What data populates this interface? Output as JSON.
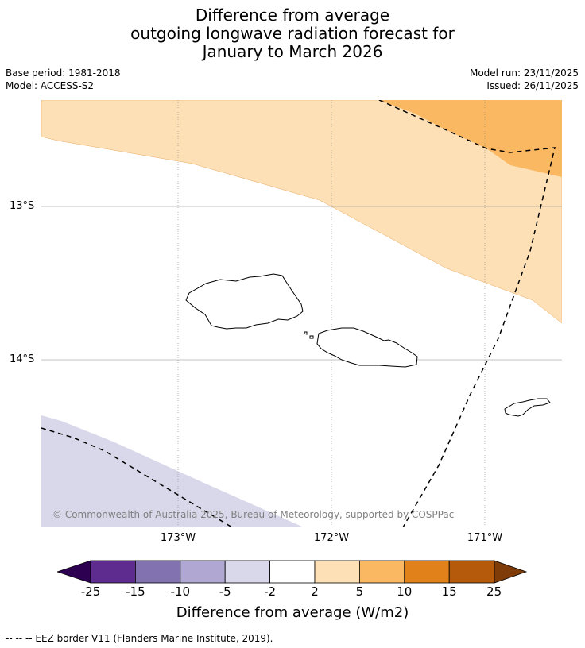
{
  "title": {
    "line1": "Difference from average",
    "line2": "outgoing longwave radiation forecast for",
    "line3": "January to March 2026"
  },
  "meta": {
    "base_period": "Base period: 1981-2018",
    "model": "Model: ACCESS-S2",
    "model_run": "Model run: 23/11/2025",
    "issued": "Issued: 26/11/2025"
  },
  "map": {
    "lat_labels": [
      "13°S",
      "14°S"
    ],
    "lon_labels": [
      "173°W",
      "172°W",
      "171°W"
    ],
    "copyright": "© Commonwealth of Australia 2025, Bureau of Meteorology, supported by COSPPac",
    "colors": {
      "pale_orange": "#fde0b5",
      "mid_orange": "#fbb863",
      "pale_purple": "#d8d8ea",
      "land_outline": "#000000",
      "eez_line": "#000000"
    },
    "regions": [
      {
        "name": "2 to 5 W/m2",
        "color": "#fde0b5"
      },
      {
        "name": "5 to 10 W/m2",
        "color": "#fbb863"
      },
      {
        "name": "-5 to -2 W/m2",
        "color": "#d8d8ea"
      }
    ]
  },
  "colorbar": {
    "title": "Difference from average (W/m2)",
    "ticks": [
      "-25",
      "-15",
      "-10",
      "-5",
      "-2",
      "2",
      "5",
      "10",
      "15",
      "25"
    ],
    "colors": [
      "#5e2b8f",
      "#8272b0",
      "#b0a8d2",
      "#d8d8ea",
      "#ffffff",
      "#fde0b5",
      "#fbb863",
      "#e08219",
      "#b45a0a"
    ],
    "under_color": "#2d0052",
    "over_color": "#7f3b08"
  },
  "legend_note": "--  --  -- EEZ border V11 (Flanders Marine Institute, 2019)."
}
